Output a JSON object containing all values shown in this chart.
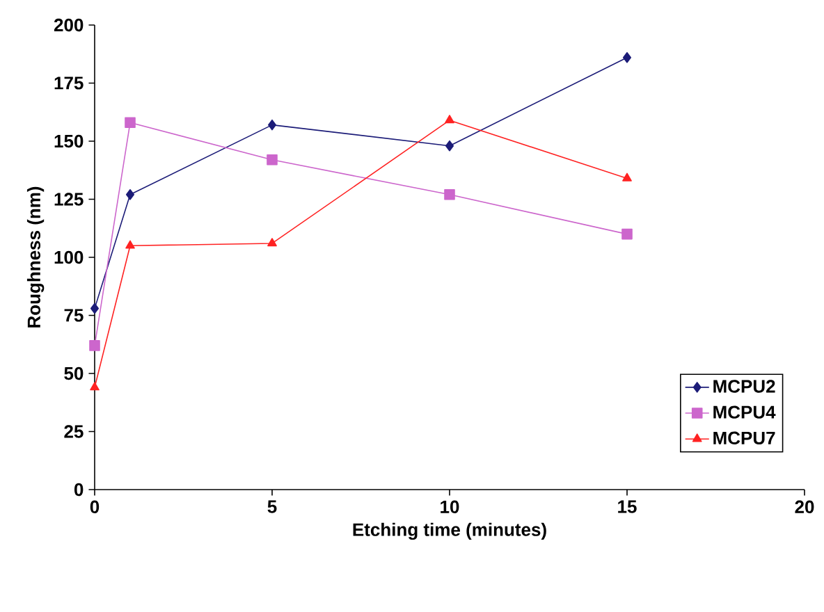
{
  "chart_data": {
    "type": "line",
    "xlabel": "Etching time (minutes)",
    "ylabel": "Roughness (nm)",
    "x": [
      0,
      1,
      5,
      10,
      15
    ],
    "series": [
      {
        "name": "MCPU2",
        "color": "#1c1c78",
        "marker": "diamond",
        "values": [
          78,
          127,
          157,
          148,
          186
        ]
      },
      {
        "name": "MCPU4",
        "color": "#cc66cc",
        "marker": "square",
        "values": [
          62,
          158,
          142,
          127,
          110
        ]
      },
      {
        "name": "MCPU7",
        "color": "#ff2222",
        "marker": "triangle",
        "values": [
          44,
          105,
          106,
          159,
          134
        ]
      }
    ],
    "xlim": [
      0,
      20
    ],
    "xticks": [
      0,
      5,
      10,
      15,
      20
    ],
    "ylim": [
      0,
      200
    ],
    "yticks": [
      0,
      25,
      50,
      75,
      100,
      125,
      150,
      175,
      200
    ],
    "grid": false,
    "legend": "bottom right",
    "line_style": "solid"
  }
}
